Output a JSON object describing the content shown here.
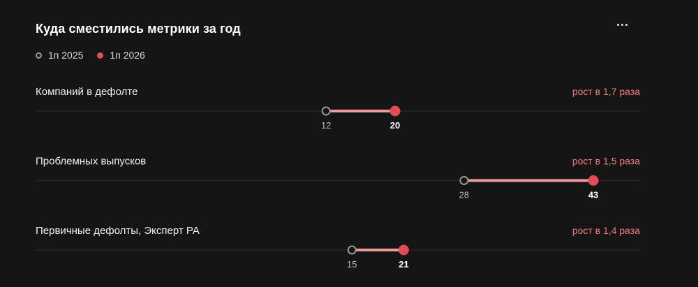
{
  "title": "Куда сместились метрики за год",
  "legend": {
    "prev_label": "1п 2025",
    "curr_label": "1п 2026"
  },
  "colors": {
    "prev_marker": "#9a9896",
    "curr_marker": "#e24d55",
    "connector": "#f19a9b",
    "change_text": "#f07b7f",
    "background": "#161516"
  },
  "chart_data": {
    "type": "dumbbell",
    "series": [
      {
        "name": "1п 2025"
      },
      {
        "name": "1п 2026"
      }
    ],
    "rows": [
      {
        "label": "Компаний в дефолте",
        "prev": 12,
        "curr": 20,
        "change": "рост в 1,7 раза"
      },
      {
        "label": "Проблемных выпусков",
        "prev": 28,
        "curr": 43,
        "change": "рост в 1,5 раза"
      },
      {
        "label": "Первичные дефолты, Эксперт РА",
        "prev": 15,
        "curr": 21,
        "change": "рост в 1,4 раза"
      }
    ]
  }
}
